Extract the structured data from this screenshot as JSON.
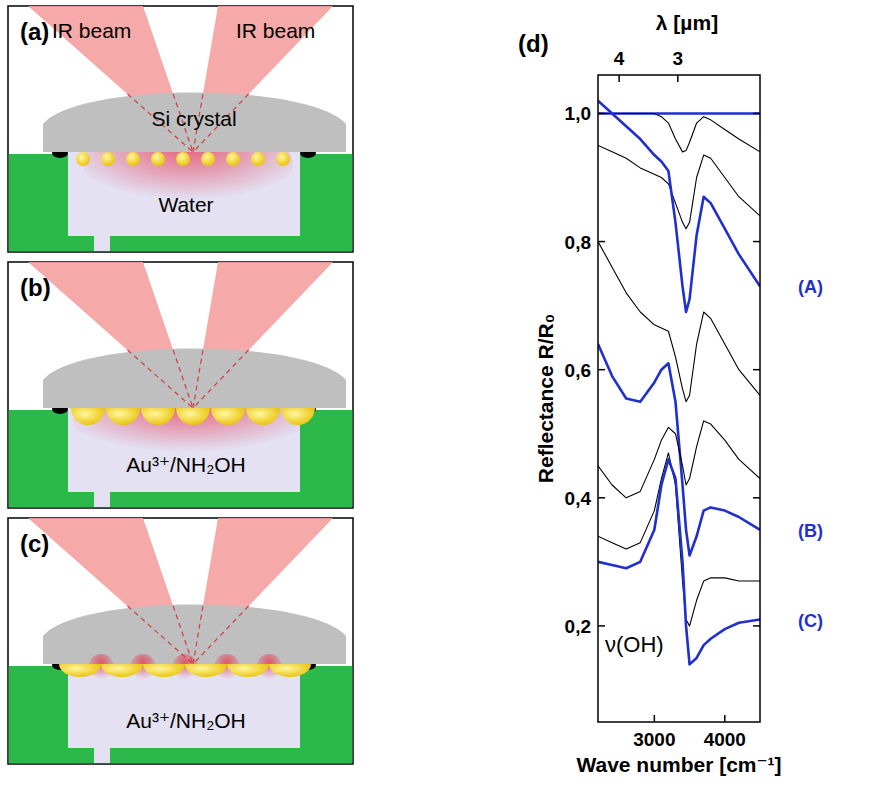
{
  "diagram": {
    "panels": [
      {
        "letter": "(a)",
        "beam_labels": [
          "IR beam",
          "IR beam"
        ],
        "crystal": "Si crystal",
        "liquid": "Water"
      },
      {
        "letter": "(b)",
        "liquid": "Au³⁺/NH₂OH"
      },
      {
        "letter": "(c)",
        "liquid": "Au³⁺/NH₂OH"
      }
    ]
  },
  "chart_data": {
    "type": "line",
    "panel_label": "(d)",
    "x_label": "Wave number [cm⁻¹]",
    "y_label": "Reflectance R/R₀",
    "x2_label": "λ [µm]",
    "xlim": [
      2200,
      4500
    ],
    "xticks": [
      3000,
      4000
    ],
    "x2ticks": [
      {
        "value": 2500,
        "label": "4"
      },
      {
        "value": 3333.3,
        "label": "3"
      }
    ],
    "ylim": [
      0.05,
      1.06
    ],
    "yticks": [
      {
        "value": 0.2,
        "label": "0,2"
      },
      {
        "value": 0.4,
        "label": "0,4"
      },
      {
        "value": 0.6,
        "label": "0,6"
      },
      {
        "value": 0.8,
        "label": "0,8"
      },
      {
        "value": 1.0,
        "label": "1,0"
      }
    ],
    "grid": false,
    "series": [
      {
        "color": "#1f2fd0",
        "x": [
          2200,
          4500
        ],
        "values": [
          1.0,
          1.0
        ]
      },
      {
        "color": "#000000",
        "x": [
          2200,
          2400,
          2600,
          2800,
          3000,
          3100,
          3200,
          3300,
          3400,
          3450,
          3500,
          3600,
          3700,
          3800,
          4000,
          4200,
          4500
        ],
        "values": [
          1.0,
          1.0,
          1.0,
          1.0,
          1.0,
          0.995,
          0.985,
          0.96,
          0.94,
          0.942,
          0.955,
          0.985,
          0.995,
          0.99,
          0.975,
          0.96,
          0.94
        ]
      },
      {
        "color": "#000000",
        "x": [
          2200,
          2400,
          2600,
          2800,
          3000,
          3100,
          3200,
          3300,
          3400,
          3450,
          3500,
          3600,
          3700,
          3800,
          4000,
          4200,
          4500
        ],
        "values": [
          0.95,
          0.94,
          0.93,
          0.915,
          0.905,
          0.9,
          0.89,
          0.86,
          0.83,
          0.82,
          0.83,
          0.9,
          0.935,
          0.93,
          0.9,
          0.87,
          0.84
        ]
      },
      {
        "name": "(A)",
        "color": "#1f2fd0",
        "x": [
          2200,
          2400,
          2600,
          2800,
          3000,
          3100,
          3200,
          3300,
          3400,
          3450,
          3500,
          3600,
          3700,
          3800,
          4000,
          4200,
          4500
        ],
        "values": [
          1.02,
          1.0,
          0.98,
          0.96,
          0.935,
          0.925,
          0.91,
          0.83,
          0.73,
          0.69,
          0.71,
          0.81,
          0.87,
          0.86,
          0.82,
          0.78,
          0.73
        ]
      },
      {
        "color": "#000000",
        "x": [
          2200,
          2400,
          2600,
          2800,
          3000,
          3100,
          3200,
          3300,
          3400,
          3450,
          3500,
          3600,
          3700,
          3800,
          4000,
          4200,
          4500
        ],
        "values": [
          0.8,
          0.76,
          0.72,
          0.69,
          0.67,
          0.665,
          0.66,
          0.62,
          0.57,
          0.55,
          0.56,
          0.64,
          0.69,
          0.68,
          0.64,
          0.6,
          0.56
        ]
      },
      {
        "name": "(B)",
        "color": "#1f2fd0",
        "x": [
          2200,
          2400,
          2600,
          2800,
          3000,
          3100,
          3200,
          3300,
          3400,
          3450,
          3500,
          3600,
          3700,
          3800,
          4000,
          4200,
          4500
        ],
        "values": [
          0.64,
          0.59,
          0.555,
          0.55,
          0.58,
          0.6,
          0.61,
          0.55,
          0.42,
          0.35,
          0.31,
          0.34,
          0.38,
          0.385,
          0.38,
          0.37,
          0.35
        ]
      },
      {
        "color": "#000000",
        "x": [
          2200,
          2400,
          2600,
          2800,
          3000,
          3100,
          3200,
          3300,
          3400,
          3450,
          3500,
          3600,
          3700,
          3800,
          4000,
          4200,
          4500
        ],
        "values": [
          0.45,
          0.42,
          0.4,
          0.41,
          0.46,
          0.49,
          0.51,
          0.5,
          0.45,
          0.42,
          0.43,
          0.48,
          0.52,
          0.515,
          0.49,
          0.46,
          0.43
        ]
      },
      {
        "color": "#000000",
        "x": [
          2200,
          2400,
          2600,
          2800,
          3000,
          3100,
          3200,
          3300,
          3400,
          3450,
          3500,
          3600,
          3700,
          3800,
          4000,
          4200,
          4500
        ],
        "values": [
          0.34,
          0.33,
          0.32,
          0.33,
          0.38,
          0.43,
          0.47,
          0.42,
          0.27,
          0.21,
          0.2,
          0.24,
          0.27,
          0.275,
          0.275,
          0.27,
          0.27
        ]
      },
      {
        "name": "(C)",
        "color": "#1f2fd0",
        "x": [
          2200,
          2400,
          2600,
          2800,
          3000,
          3100,
          3200,
          3300,
          3400,
          3450,
          3500,
          3600,
          3700,
          3800,
          4000,
          4200,
          4500
        ],
        "values": [
          0.3,
          0.295,
          0.29,
          0.3,
          0.35,
          0.42,
          0.46,
          0.43,
          0.3,
          0.2,
          0.14,
          0.15,
          0.17,
          0.18,
          0.195,
          0.205,
          0.21
        ]
      }
    ],
    "annotations": [
      {
        "text": "ν(OH)",
        "x": 2300,
        "y": 0.16
      }
    ]
  }
}
